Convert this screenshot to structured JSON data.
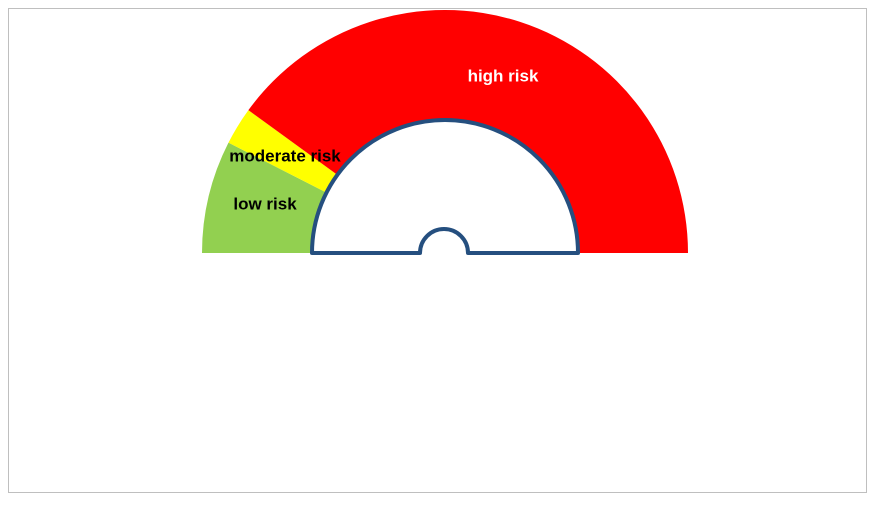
{
  "chart_data": {
    "type": "gauge",
    "categories": [
      "low risk",
      "moderate risk",
      "high risk"
    ],
    "values": [
      15,
      5,
      80
    ],
    "colors": [
      "#92d050",
      "#ffff00",
      "#ff0000"
    ],
    "label_colors": [
      "#000000",
      "#000000",
      "#ffffff"
    ]
  }
}
